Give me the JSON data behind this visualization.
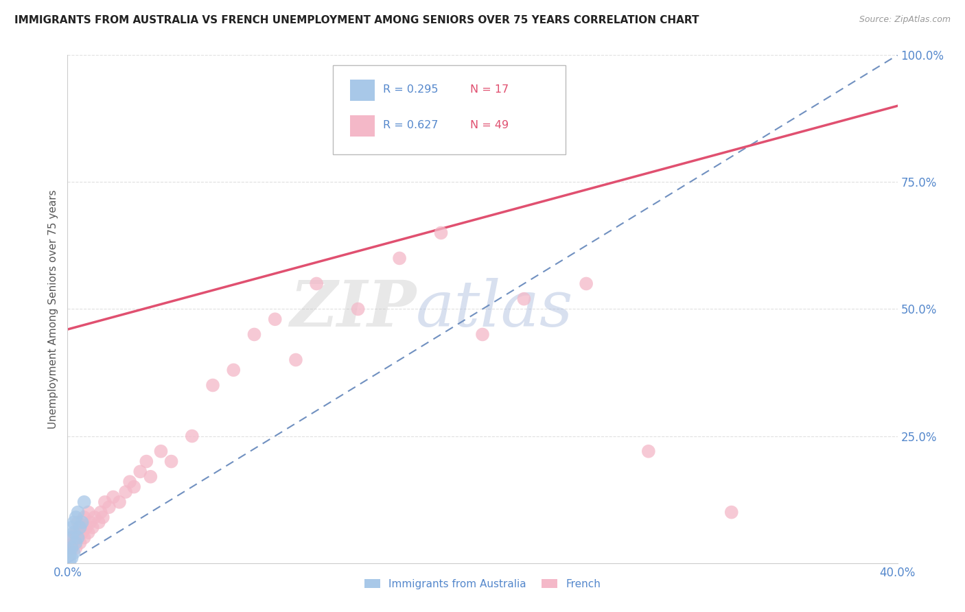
{
  "title": "IMMIGRANTS FROM AUSTRALIA VS FRENCH UNEMPLOYMENT AMONG SENIORS OVER 75 YEARS CORRELATION CHART",
  "source": "Source: ZipAtlas.com",
  "ylabel": "Unemployment Among Seniors over 75 years",
  "xlim": [
    0.0,
    0.4
  ],
  "ylim": [
    0.0,
    1.0
  ],
  "legend_blue_r": "R = 0.295",
  "legend_blue_n": "N = 17",
  "legend_pink_r": "R = 0.627",
  "legend_pink_n": "N = 49",
  "label_blue": "Immigrants from Australia",
  "label_pink": "French",
  "blue_scatter_x": [
    0.001,
    0.001,
    0.001,
    0.002,
    0.002,
    0.002,
    0.002,
    0.003,
    0.003,
    0.003,
    0.004,
    0.004,
    0.005,
    0.005,
    0.006,
    0.007,
    0.008
  ],
  "blue_scatter_y": [
    0.005,
    0.015,
    0.025,
    0.01,
    0.03,
    0.05,
    0.07,
    0.02,
    0.06,
    0.08,
    0.04,
    0.09,
    0.05,
    0.1,
    0.07,
    0.08,
    0.12
  ],
  "pink_scatter_x": [
    0.001,
    0.002,
    0.002,
    0.003,
    0.004,
    0.004,
    0.005,
    0.005,
    0.006,
    0.006,
    0.007,
    0.008,
    0.008,
    0.009,
    0.01,
    0.01,
    0.011,
    0.012,
    0.013,
    0.015,
    0.016,
    0.017,
    0.018,
    0.02,
    0.022,
    0.025,
    0.028,
    0.03,
    0.032,
    0.035,
    0.038,
    0.04,
    0.045,
    0.05,
    0.06,
    0.07,
    0.08,
    0.09,
    0.1,
    0.11,
    0.12,
    0.14,
    0.16,
    0.18,
    0.2,
    0.22,
    0.25,
    0.28,
    0.32
  ],
  "pink_scatter_y": [
    0.02,
    0.03,
    0.05,
    0.04,
    0.03,
    0.06,
    0.05,
    0.08,
    0.04,
    0.07,
    0.06,
    0.05,
    0.09,
    0.07,
    0.06,
    0.1,
    0.08,
    0.07,
    0.09,
    0.08,
    0.1,
    0.09,
    0.12,
    0.11,
    0.13,
    0.12,
    0.14,
    0.16,
    0.15,
    0.18,
    0.2,
    0.17,
    0.22,
    0.2,
    0.25,
    0.35,
    0.38,
    0.45,
    0.48,
    0.4,
    0.55,
    0.5,
    0.6,
    0.65,
    0.45,
    0.52,
    0.55,
    0.22,
    0.1
  ],
  "blue_trendline_x": [
    0.0,
    0.4
  ],
  "blue_trendline_y": [
    0.0,
    1.0
  ],
  "pink_trendline_x": [
    0.0,
    0.4
  ],
  "pink_trendline_y": [
    0.46,
    0.9
  ],
  "blue_color": "#a8c8e8",
  "pink_color": "#f4b8c8",
  "blue_line_color": "#7090c0",
  "pink_line_color": "#e05070",
  "watermark_zip": "ZIP",
  "watermark_atlas": "atlas",
  "background_color": "#ffffff",
  "grid_color": "#e0e0e0"
}
